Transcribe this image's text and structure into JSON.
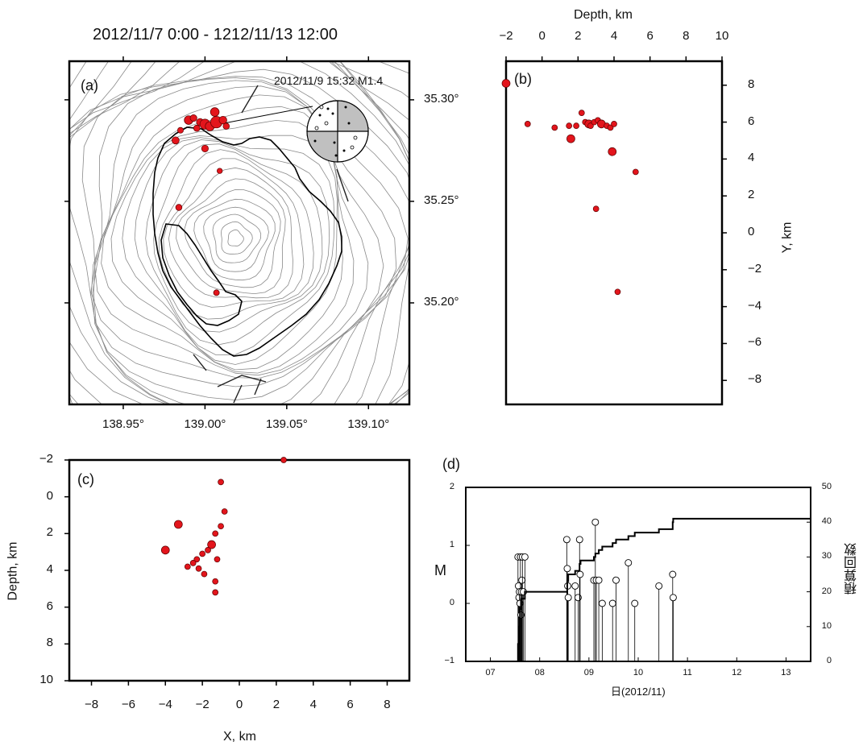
{
  "figure_title": "2012/11/7 0:00 - 1212/11/13 12:00",
  "colors": {
    "event_fill": "#e3151c",
    "event_stroke": "#5a0000",
    "contour": "#8a8a8a",
    "frame": "#000000",
    "mech_shade": "#c0c0c0"
  },
  "chart_data": [
    {
      "type": "scatter",
      "panel_label": "(a)",
      "title": "2012/11/7 0:00 - 1212/11/13 12:00",
      "annotation": "2012/11/9 15:32 M1.4",
      "x_ticks": [
        "138.95°",
        "139.00°",
        "139.05°",
        "139.10°"
      ],
      "y_ticks": [
        "35.30°",
        "35.25°",
        "35.20°"
      ],
      "xlim": [
        138.917,
        139.125
      ],
      "ylim": [
        35.15,
        35.319
      ],
      "points": [
        {
          "lon": 138.99,
          "lat": 35.29,
          "mag": 0.8
        },
        {
          "lon": 138.993,
          "lat": 35.291,
          "mag": 0.4
        },
        {
          "lon": 138.997,
          "lat": 35.289,
          "mag": 0.5
        },
        {
          "lon": 139.0,
          "lat": 35.288,
          "mag": 1.1
        },
        {
          "lon": 139.003,
          "lat": 35.287,
          "mag": 0.9
        },
        {
          "lon": 139.007,
          "lat": 35.289,
          "mag": 1.4
        },
        {
          "lon": 139.011,
          "lat": 35.29,
          "mag": 0.6
        },
        {
          "lon": 139.013,
          "lat": 35.287,
          "mag": 0.3
        },
        {
          "lon": 139.006,
          "lat": 35.294,
          "mag": 0.8
        },
        {
          "lon": 138.985,
          "lat": 35.285,
          "mag": 0.2
        },
        {
          "lon": 138.995,
          "lat": 35.286,
          "mag": 0.3
        },
        {
          "lon": 138.982,
          "lat": 35.28,
          "mag": 0.5
        },
        {
          "lon": 139.0,
          "lat": 35.276,
          "mag": 0.4
        },
        {
          "lon": 139.009,
          "lat": 35.265,
          "mag": 0.1
        },
        {
          "lon": 138.984,
          "lat": 35.247,
          "mag": 0.3
        },
        {
          "lon": 139.007,
          "lat": 35.205,
          "mag": 0.2
        }
      ]
    },
    {
      "type": "scatter",
      "panel_label": "(b)",
      "xlabel": "Depth, km",
      "ylabel": "Y, km",
      "x_ticks": [
        -2,
        0,
        2,
        4,
        6,
        8,
        10
      ],
      "y_ticks": [
        8,
        6,
        4,
        2,
        0,
        -2,
        -4,
        -6,
        -8
      ],
      "xlim": [
        -2,
        10
      ],
      "ylim": [
        -9.3,
        9.3
      ],
      "points": [
        [
          -2.0,
          8.1
        ],
        [
          -0.8,
          5.9
        ],
        [
          0.7,
          5.7
        ],
        [
          1.5,
          5.8
        ],
        [
          1.6,
          5.1
        ],
        [
          1.9,
          5.8
        ],
        [
          2.2,
          6.5
        ],
        [
          2.4,
          6.0
        ],
        [
          2.6,
          5.9
        ],
        [
          2.7,
          5.8
        ],
        [
          2.9,
          6.0
        ],
        [
          3.1,
          6.1
        ],
        [
          3.3,
          5.9
        ],
        [
          3.6,
          5.8
        ],
        [
          3.8,
          5.7
        ],
        [
          4.0,
          5.9
        ],
        [
          3.9,
          4.4
        ],
        [
          5.2,
          3.3
        ],
        [
          3.0,
          1.3
        ],
        [
          4.2,
          -3.2
        ]
      ]
    },
    {
      "type": "scatter",
      "panel_label": "(c)",
      "xlabel": "X, km",
      "ylabel": "Depth, km",
      "x_ticks": [
        -8,
        -6,
        -4,
        -2,
        0,
        2,
        4,
        6,
        8
      ],
      "y_ticks": [
        -2,
        0,
        2,
        4,
        6,
        8,
        10
      ],
      "xlim": [
        -9.2,
        9.2
      ],
      "ylim": [
        -2,
        10
      ],
      "points": [
        [
          2.4,
          -2.0
        ],
        [
          -1.0,
          -0.8
        ],
        [
          -0.8,
          0.8
        ],
        [
          -3.3,
          1.5
        ],
        [
          -1.0,
          1.6
        ],
        [
          -1.3,
          2.0
        ],
        [
          -1.5,
          2.6
        ],
        [
          -1.7,
          2.9
        ],
        [
          -2.0,
          3.1
        ],
        [
          -2.3,
          3.4
        ],
        [
          -2.5,
          3.6
        ],
        [
          -1.2,
          3.4
        ],
        [
          -2.2,
          3.9
        ],
        [
          -2.8,
          3.8
        ],
        [
          -1.9,
          4.2
        ],
        [
          -4.0,
          2.9
        ],
        [
          -1.3,
          4.6
        ],
        [
          -1.3,
          5.2
        ]
      ]
    },
    {
      "type": "line",
      "panel_label": "(d)",
      "xlabel": "日(2012/11)",
      "ylabel": "M",
      "y2label": "積算回数",
      "x_ticks": [
        "07",
        "08",
        "09",
        "10",
        "11",
        "12",
        "13"
      ],
      "y_ticks": [
        2,
        1,
        0,
        -1
      ],
      "y2_ticks": [
        50,
        40,
        30,
        20,
        10,
        0
      ],
      "xlim": [
        6.5,
        13.5
      ],
      "ylim": [
        -1,
        2
      ],
      "y2lim": [
        0,
        50
      ],
      "events": [
        {
          "day": 7.56,
          "mag": 0.8
        },
        {
          "day": 7.57,
          "mag": 0.3
        },
        {
          "day": 7.58,
          "mag": 0.1
        },
        {
          "day": 7.59,
          "mag": 0.2
        },
        {
          "day": 7.6,
          "mag": 0.0
        },
        {
          "day": 7.61,
          "mag": 0.8
        },
        {
          "day": 7.62,
          "mag": -0.2
        },
        {
          "day": 7.63,
          "mag": 0.2
        },
        {
          "day": 7.64,
          "mag": 0.4
        },
        {
          "day": 7.65,
          "mag": 0.8
        },
        {
          "day": 7.67,
          "mag": 0.2
        },
        {
          "day": 7.7,
          "mag": 0.8
        },
        {
          "day": 8.55,
          "mag": 1.1
        },
        {
          "day": 8.56,
          "mag": 0.6
        },
        {
          "day": 8.57,
          "mag": 0.3
        },
        {
          "day": 8.58,
          "mag": 0.1
        },
        {
          "day": 8.72,
          "mag": 0.3
        },
        {
          "day": 8.78,
          "mag": 0.1
        },
        {
          "day": 8.81,
          "mag": 1.1
        },
        {
          "day": 8.82,
          "mag": 0.5
        },
        {
          "day": 9.1,
          "mag": 0.4
        },
        {
          "day": 9.13,
          "mag": 1.4
        },
        {
          "day": 9.15,
          "mag": 0.4
        },
        {
          "day": 9.2,
          "mag": 0.4
        },
        {
          "day": 9.27,
          "mag": 0.0
        },
        {
          "day": 9.48,
          "mag": 0.0
        },
        {
          "day": 9.55,
          "mag": 0.4
        },
        {
          "day": 9.8,
          "mag": 0.7
        },
        {
          "day": 9.93,
          "mag": 0.0
        },
        {
          "day": 10.42,
          "mag": 0.3
        },
        {
          "day": 10.7,
          "mag": 0.5
        },
        {
          "day": 10.71,
          "mag": 0.1
        }
      ],
      "cumulative": [
        [
          6.5,
          0
        ],
        [
          7.55,
          0
        ],
        [
          7.56,
          5
        ],
        [
          7.58,
          10
        ],
        [
          7.6,
          15
        ],
        [
          7.63,
          18
        ],
        [
          7.7,
          20
        ],
        [
          8.55,
          20
        ],
        [
          8.56,
          23
        ],
        [
          8.58,
          25
        ],
        [
          8.72,
          26
        ],
        [
          8.81,
          28
        ],
        [
          8.83,
          29
        ],
        [
          9.1,
          30
        ],
        [
          9.13,
          31
        ],
        [
          9.2,
          32
        ],
        [
          9.27,
          33
        ],
        [
          9.48,
          34
        ],
        [
          9.55,
          35
        ],
        [
          9.8,
          36
        ],
        [
          9.93,
          37
        ],
        [
          10.42,
          38
        ],
        [
          10.7,
          40
        ],
        [
          10.71,
          41
        ],
        [
          13.5,
          41
        ]
      ]
    }
  ]
}
